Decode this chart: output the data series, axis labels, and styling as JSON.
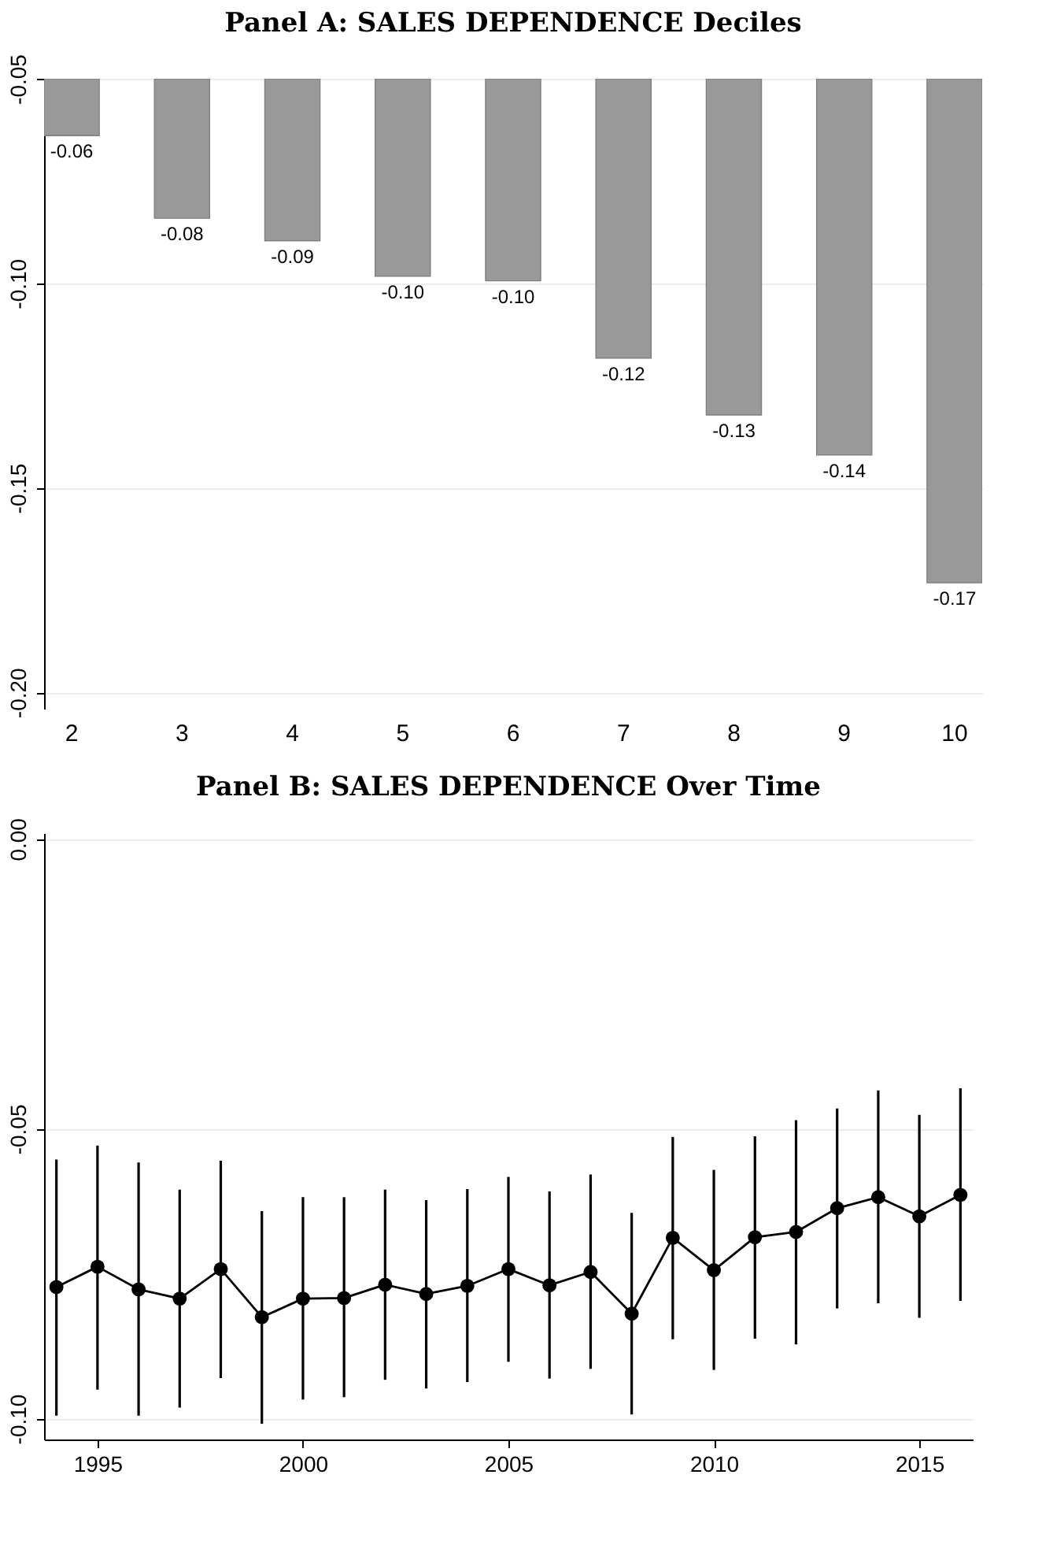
{
  "chart_data": [
    {
      "type": "bar",
      "title": "Panel A: SALES DEPENDENCE Deciles",
      "categories": [
        "2",
        "3",
        "4",
        "5",
        "6",
        "7",
        "8",
        "9",
        "10"
      ],
      "values": [
        -0.0639,
        -0.0841,
        -0.0896,
        -0.0983,
        -0.0994,
        -0.1183,
        -0.1322,
        -0.142,
        -0.1732
      ],
      "value_labels": [
        "-0.06",
        "-0.08",
        "-0.09",
        "-0.10",
        "-0.10",
        "-0.12",
        "-0.13",
        "-0.14",
        "-0.17"
      ],
      "color": "#999999",
      "ylim": [
        -0.204,
        -0.05
      ],
      "yticks": [
        {
          "value": -0.2,
          "label": "-0.20"
        },
        {
          "value": -0.15,
          "label": "-0.15"
        },
        {
          "value": -0.1,
          "label": "-0.10"
        },
        {
          "value": -0.05,
          "label": "-0.05"
        }
      ],
      "grid": "y"
    },
    {
      "type": "line",
      "title": "Panel B: SALES DEPENDENCE Over Time",
      "x": [
        1994,
        1995,
        1996,
        1997,
        1998,
        1999,
        2000,
        2001,
        2002,
        2003,
        2004,
        2005,
        2006,
        2007,
        2008,
        2009,
        2010,
        2011,
        2012,
        2013,
        2014,
        2015,
        2016
      ],
      "values": [
        -0.0773,
        -0.0738,
        -0.0777,
        -0.0793,
        -0.0742,
        -0.0825,
        -0.0793,
        -0.0792,
        -0.0769,
        -0.0785,
        -0.0771,
        -0.0742,
        -0.077,
        -0.0747,
        -0.0819,
        -0.0688,
        -0.0744,
        -0.0687,
        -0.0678,
        -0.0637,
        -0.0618,
        -0.0651,
        -0.0614
      ],
      "errors": [
        [
          -0.0995,
          -0.0553
        ],
        [
          -0.095,
          -0.0529
        ],
        [
          -0.0995,
          -0.0558
        ],
        [
          -0.0981,
          -0.0605
        ],
        [
          -0.093,
          -0.0555
        ],
        [
          -0.1009,
          -0.0642
        ],
        [
          -0.0967,
          -0.0618
        ],
        [
          -0.0963,
          -0.0618
        ],
        [
          -0.0933,
          -0.0605
        ],
        [
          -0.0948,
          -0.0623
        ],
        [
          -0.0937,
          -0.0604
        ],
        [
          -0.0902,
          -0.0583
        ],
        [
          -0.0931,
          -0.0608
        ],
        [
          -0.0914,
          -0.0579
        ],
        [
          -0.0993,
          -0.0645
        ],
        [
          -0.0863,
          -0.0514
        ],
        [
          -0.0916,
          -0.0571
        ],
        [
          -0.0862,
          -0.0513
        ],
        [
          -0.0872,
          -0.0485
        ],
        [
          -0.081,
          -0.0465
        ],
        [
          -0.0801,
          -0.0434
        ],
        [
          -0.0826,
          -0.0476
        ],
        [
          -0.0797,
          -0.043
        ]
      ],
      "color": "#000000",
      "marker": "circle",
      "line_style": "solid",
      "xlim": [
        1993.7,
        2016.3
      ],
      "xticks": [
        1995,
        2000,
        2005,
        2010,
        2015
      ],
      "ylim": [
        -0.1036,
        0.001
      ],
      "yticks": [
        {
          "value": -0.1,
          "label": "-0.10"
        },
        {
          "value": -0.05,
          "label": "-0.05"
        },
        {
          "value": 0,
          "label": "0.00"
        }
      ],
      "grid": "y"
    }
  ]
}
